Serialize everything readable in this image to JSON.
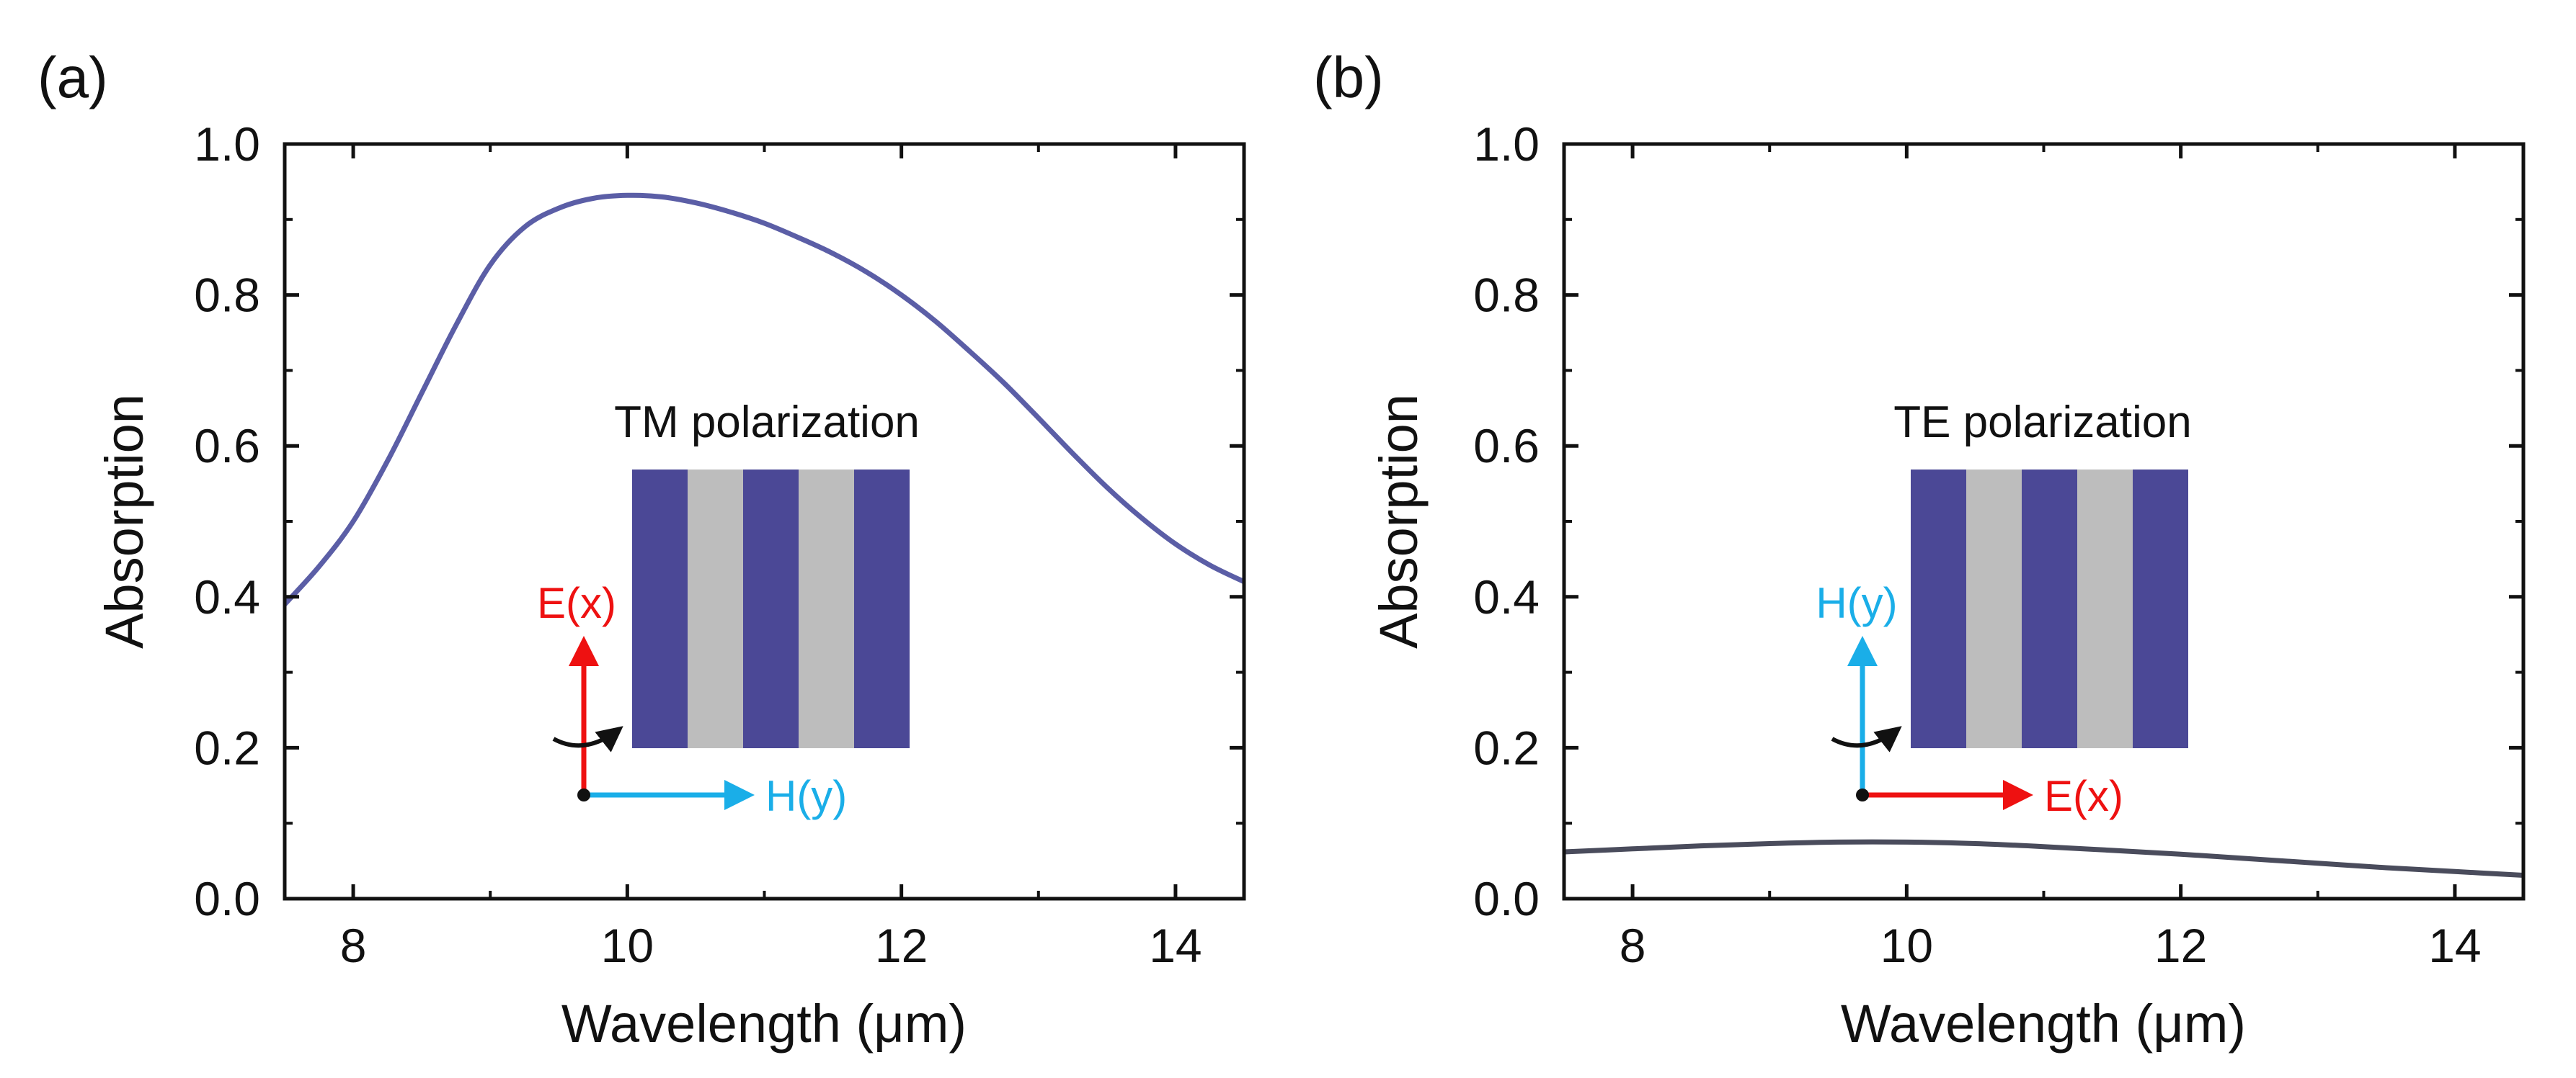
{
  "colors": {
    "curve_tm": "#5b5ea6",
    "curve_te": "#4a4c5c",
    "stripe_dark": "#4b4896",
    "stripe_light": "#bdbdbd",
    "e_field": "#ee1111",
    "h_field": "#1aaee8",
    "axis": "#111111"
  },
  "chart_data": [
    {
      "type": "line",
      "panel_label": "(a)",
      "xlabel": "Wavelength (μm)",
      "ylabel": "Absorption",
      "xlim": [
        7.5,
        14.5
      ],
      "ylim": [
        0.0,
        1.0
      ],
      "xticks": [
        8,
        10,
        12,
        14
      ],
      "xtick_labels": [
        "8",
        "10",
        "12",
        "14"
      ],
      "yticks": [
        0.0,
        0.2,
        0.4,
        0.6,
        0.8,
        1.0
      ],
      "ytick_labels": [
        "0.0",
        "0.2",
        "0.4",
        "0.6",
        "0.8",
        "1.0"
      ],
      "inset_title": "TM polarization",
      "inset_vertical_field": "E(x)",
      "inset_horizontal_field": "H(y)",
      "series": [
        {
          "name": "TM",
          "color_key": "curve_tm",
          "x": [
            7.5,
            7.75,
            8.0,
            8.25,
            8.5,
            8.75,
            9.0,
            9.25,
            9.5,
            9.75,
            10.0,
            10.25,
            10.5,
            10.75,
            11.0,
            11.25,
            11.5,
            11.75,
            12.0,
            12.25,
            12.5,
            12.75,
            13.0,
            13.25,
            13.5,
            13.75,
            14.0,
            14.25,
            14.5
          ],
          "y": [
            0.39,
            0.44,
            0.5,
            0.58,
            0.67,
            0.76,
            0.84,
            0.89,
            0.915,
            0.928,
            0.932,
            0.93,
            0.922,
            0.91,
            0.895,
            0.876,
            0.855,
            0.83,
            0.8,
            0.765,
            0.725,
            0.683,
            0.637,
            0.59,
            0.545,
            0.505,
            0.47,
            0.442,
            0.42
          ]
        }
      ]
    },
    {
      "type": "line",
      "panel_label": "(b)",
      "xlabel": "Wavelength (μm)",
      "ylabel": "Absorption",
      "xlim": [
        7.5,
        14.5
      ],
      "ylim": [
        0.0,
        1.0
      ],
      "xticks": [
        8,
        10,
        12,
        14
      ],
      "xtick_labels": [
        "8",
        "10",
        "12",
        "14"
      ],
      "yticks": [
        0.0,
        0.2,
        0.4,
        0.6,
        0.8,
        1.0
      ],
      "ytick_labels": [
        "0.0",
        "0.2",
        "0.4",
        "0.6",
        "0.8",
        "1.0"
      ],
      "inset_title": "TE polarization",
      "inset_vertical_field": "H(y)",
      "inset_horizontal_field": "E(x)",
      "series": [
        {
          "name": "TE",
          "color_key": "curve_te",
          "x": [
            7.5,
            8.0,
            8.5,
            9.0,
            9.5,
            10.0,
            10.5,
            11.0,
            11.5,
            12.0,
            12.5,
            13.0,
            13.5,
            14.0,
            14.5
          ],
          "y": [
            0.062,
            0.066,
            0.07,
            0.073,
            0.075,
            0.075,
            0.073,
            0.069,
            0.064,
            0.059,
            0.053,
            0.047,
            0.041,
            0.036,
            0.031
          ]
        }
      ]
    }
  ]
}
